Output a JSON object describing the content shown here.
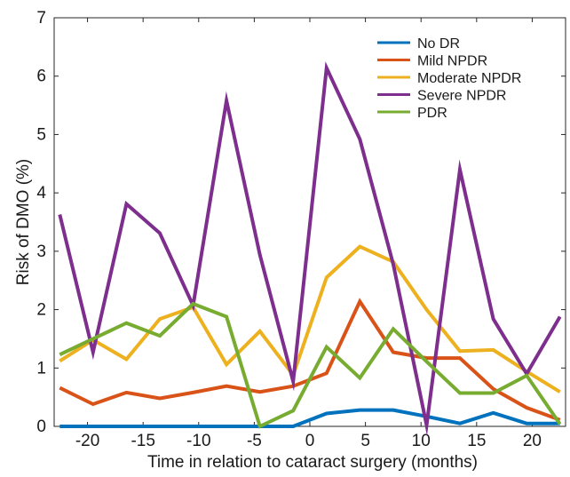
{
  "chart_data": {
    "type": "line",
    "title": "",
    "xlabel": "Time in relation to cataract surgery (months)",
    "ylabel": "Risk of DMO (%)",
    "xlim": [
      -23,
      23
    ],
    "ylim": [
      0,
      7
    ],
    "xticks": [
      -20,
      -15,
      -10,
      -5,
      0,
      5,
      10,
      15,
      20
    ],
    "xtick_labels": [
      "-20",
      "-15",
      "-10",
      "-5",
      "0",
      "5",
      "10",
      "15",
      "20"
    ],
    "yticks": [
      0,
      1,
      2,
      3,
      4,
      5,
      6,
      7
    ],
    "ytick_labels": [
      "0",
      "1",
      "2",
      "3",
      "4",
      "5",
      "6",
      "7"
    ],
    "grid": false,
    "legend_position": "top-right",
    "x": [
      -22.5,
      -19.5,
      -16.5,
      -13.5,
      -10.5,
      -7.5,
      -4.5,
      -1.5,
      1.5,
      4.5,
      7.5,
      10.5,
      13.5,
      16.5,
      19.5,
      22.5
    ],
    "series": [
      {
        "name": "No DR",
        "color": "#0072BD",
        "values": [
          0,
          0,
          0,
          0,
          0,
          0,
          0,
          0,
          0.22,
          0.28,
          0.28,
          0.17,
          0.05,
          0.23,
          0.05,
          0.05
        ]
      },
      {
        "name": "Mild NPDR",
        "color": "#D95319",
        "values": [
          0.66,
          0.38,
          0.58,
          0.48,
          0.58,
          0.69,
          0.59,
          0.69,
          0.91,
          2.14,
          1.27,
          1.17,
          1.17,
          0.64,
          0.32,
          0.11
        ]
      },
      {
        "name": "Moderate NPDR",
        "color": "#EDB120",
        "values": [
          1.12,
          1.48,
          1.15,
          1.84,
          2.04,
          1.06,
          1.63,
          0.88,
          2.55,
          3.08,
          2.82,
          2.0,
          1.29,
          1.31,
          0.94,
          0.59
        ]
      },
      {
        "name": "Severe NPDR",
        "color": "#7E2F8E",
        "values": [
          3.63,
          1.27,
          3.81,
          3.31,
          2.07,
          5.58,
          2.94,
          0.77,
          6.14,
          4.92,
          2.78,
          0.02,
          4.4,
          1.84,
          0.9,
          1.88
        ]
      },
      {
        "name": "PDR",
        "color": "#77AC30",
        "values": [
          1.23,
          1.5,
          1.77,
          1.55,
          2.1,
          1.88,
          0.0,
          0.27,
          1.36,
          0.83,
          1.67,
          1.11,
          0.57,
          0.57,
          0.87,
          0.04
        ]
      }
    ]
  }
}
